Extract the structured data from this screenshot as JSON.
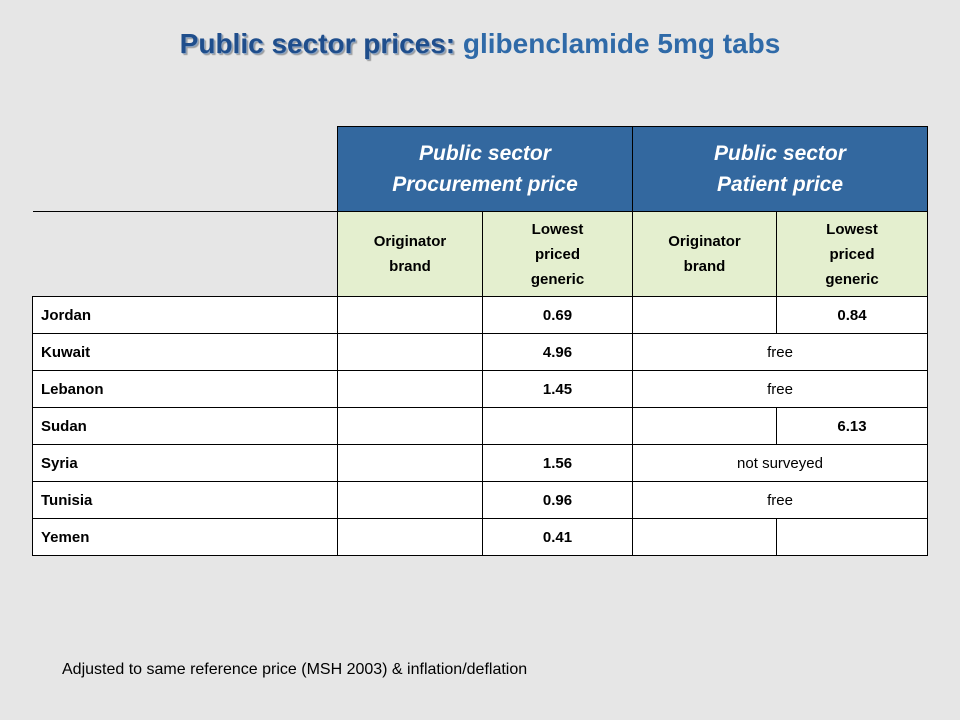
{
  "title": {
    "lead": "Public sector prices:",
    "rest": "glibenclamide 5mg tabs"
  },
  "table": {
    "group_headers": [
      {
        "line1": "Public sector",
        "line2": "Procurement price"
      },
      {
        "line1": "Public sector",
        "line2": "Patient price"
      }
    ],
    "sub_headers": [
      {
        "lines": [
          "Originator",
          "brand"
        ]
      },
      {
        "lines": [
          "Lowest",
          "priced",
          "generic"
        ]
      },
      {
        "lines": [
          "Originator",
          "brand"
        ]
      },
      {
        "lines": [
          "Lowest",
          "priced",
          "generic"
        ]
      }
    ],
    "rows": [
      {
        "country": "Jordan",
        "proc_brand": "",
        "proc_generic": "0.69",
        "pat_brand": "",
        "pat_generic": "0.84",
        "pat_merged": ""
      },
      {
        "country": "Kuwait",
        "proc_brand": "",
        "proc_generic": "4.96",
        "pat_merged": "free"
      },
      {
        "country": "Lebanon",
        "proc_brand": "",
        "proc_generic": "1.45",
        "pat_merged": "free"
      },
      {
        "country": "Sudan",
        "proc_brand": "",
        "proc_generic": "",
        "pat_brand": "",
        "pat_generic": "6.13",
        "pat_merged": ""
      },
      {
        "country": "Syria",
        "proc_brand": "",
        "proc_generic": "1.56",
        "pat_merged": "not surveyed"
      },
      {
        "country": "Tunisia",
        "proc_brand": "",
        "proc_generic": "0.96",
        "pat_merged": "free"
      },
      {
        "country": "Yemen",
        "proc_brand": "",
        "proc_generic": "0.41",
        "pat_brand": "",
        "pat_generic": "",
        "pat_merged": ""
      }
    ]
  },
  "footnote": "Adjusted to same reference price (MSH 2003) & inflation/deflation"
}
